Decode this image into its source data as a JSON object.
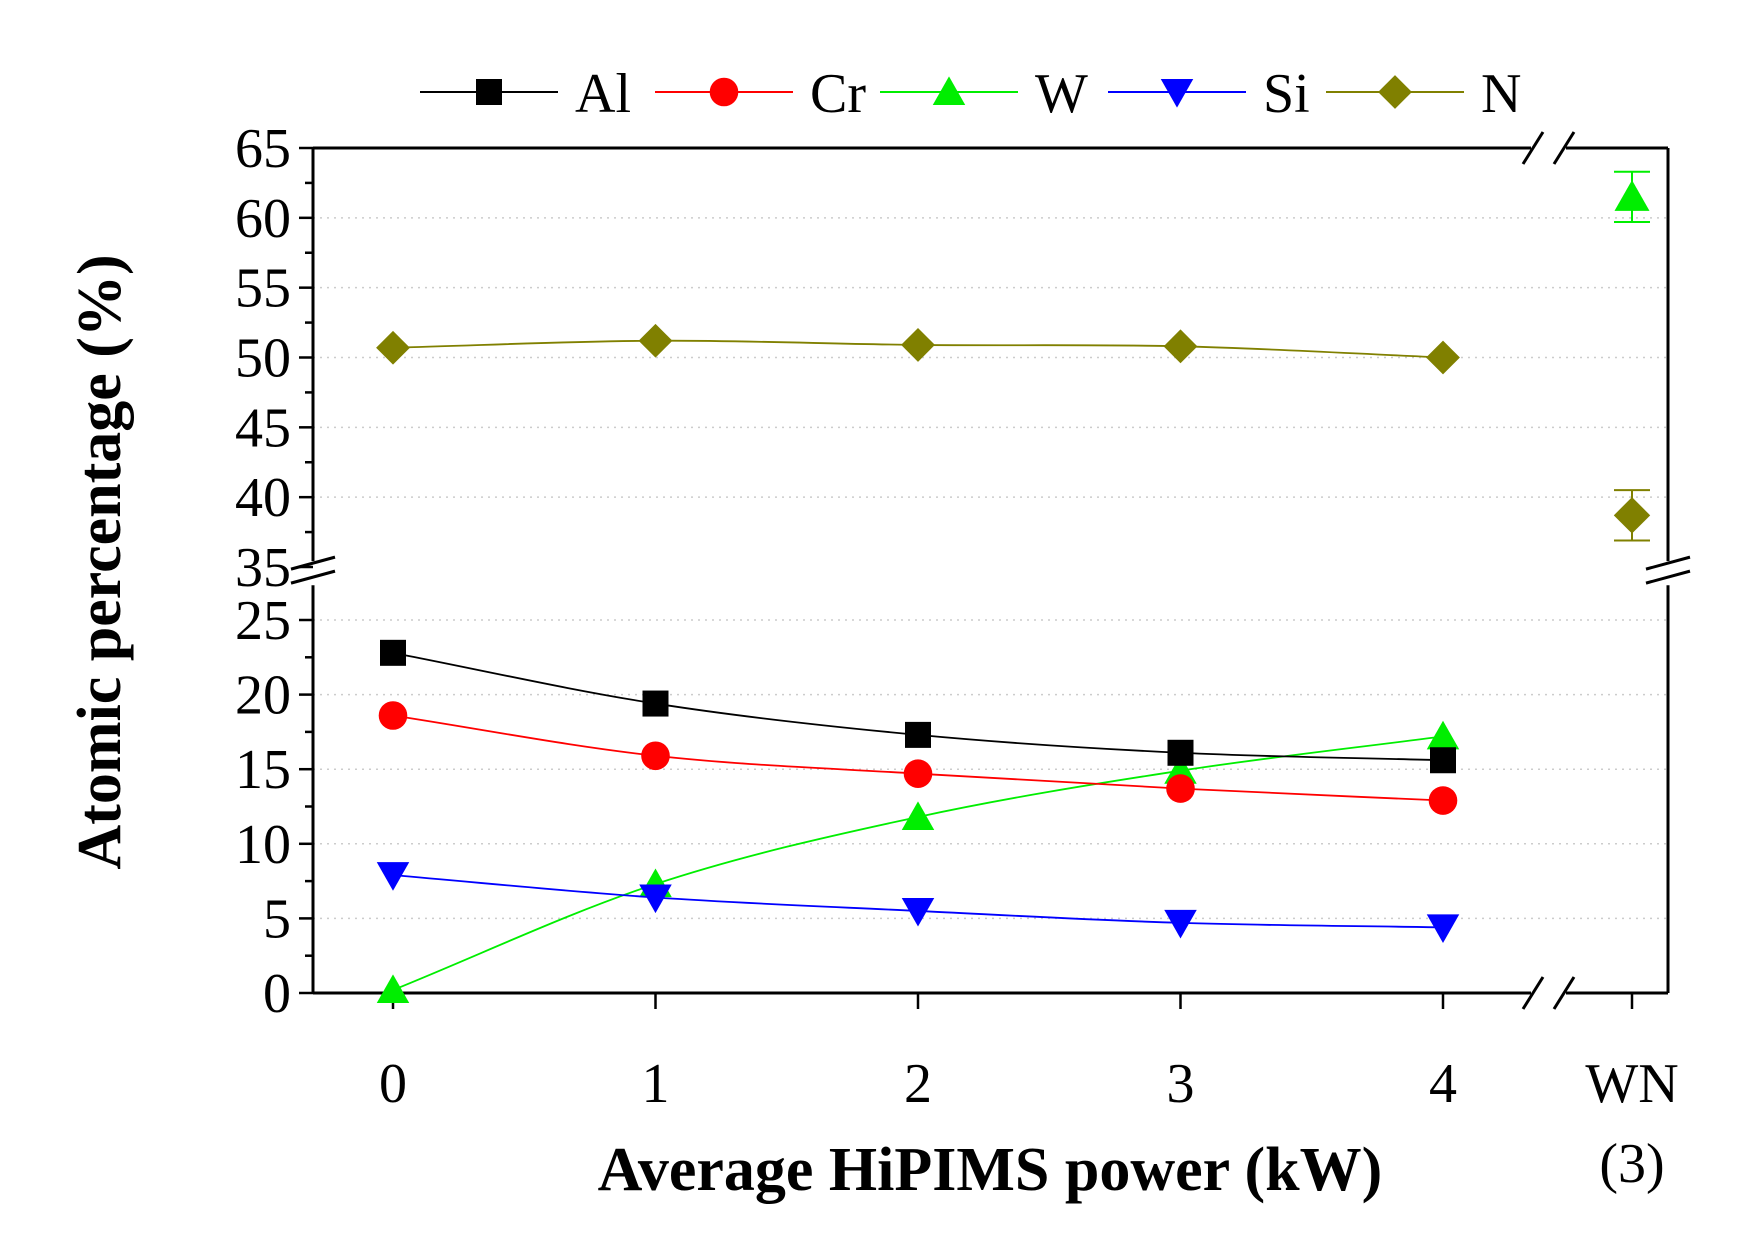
{
  "chart_data": {
    "type": "line",
    "title": "",
    "xlabel": "Average HiPIMS power (kW)",
    "ylabel": "Atomic percentage (%)",
    "x": [
      0,
      1,
      2,
      3,
      4
    ],
    "x_tick_labels": [
      "0",
      "1",
      "2",
      "3",
      "4"
    ],
    "reference_label_line1": "WN",
    "reference_label_line2": "(3)",
    "y_axis_break": {
      "lower_range": [
        0,
        28
      ],
      "upper_range": [
        35,
        65
      ]
    },
    "y_ticks_lower": [
      "0",
      "5",
      "10",
      "15",
      "20",
      "25"
    ],
    "y_ticks_upper": [
      "35",
      "40",
      "45",
      "50",
      "55",
      "60",
      "65"
    ],
    "grid": "horizontal dotted",
    "legend_position": "top",
    "series": [
      {
        "name": "Al",
        "color": "#000000",
        "marker": "square",
        "values": [
          22.8,
          19.4,
          17.3,
          16.1,
          15.6
        ]
      },
      {
        "name": "Cr",
        "color": "#ff0000",
        "marker": "circle",
        "values": [
          18.6,
          15.9,
          14.7,
          13.7,
          12.9
        ]
      },
      {
        "name": "W",
        "color": "#00ee00",
        "marker": "triangle-up",
        "values": [
          0.2,
          7.3,
          11.8,
          14.9,
          17.2
        ],
        "reference_value": 61.5,
        "reference_error": 1.8
      },
      {
        "name": "Si",
        "color": "#0000ff",
        "marker": "triangle-down",
        "values": [
          7.9,
          6.4,
          5.5,
          4.7,
          4.4
        ]
      },
      {
        "name": "N",
        "color": "#808000",
        "marker": "diamond",
        "values": [
          50.7,
          51.2,
          50.9,
          50.8,
          50.0
        ],
        "reference_value": 38.7,
        "reference_error": 1.8
      }
    ]
  }
}
